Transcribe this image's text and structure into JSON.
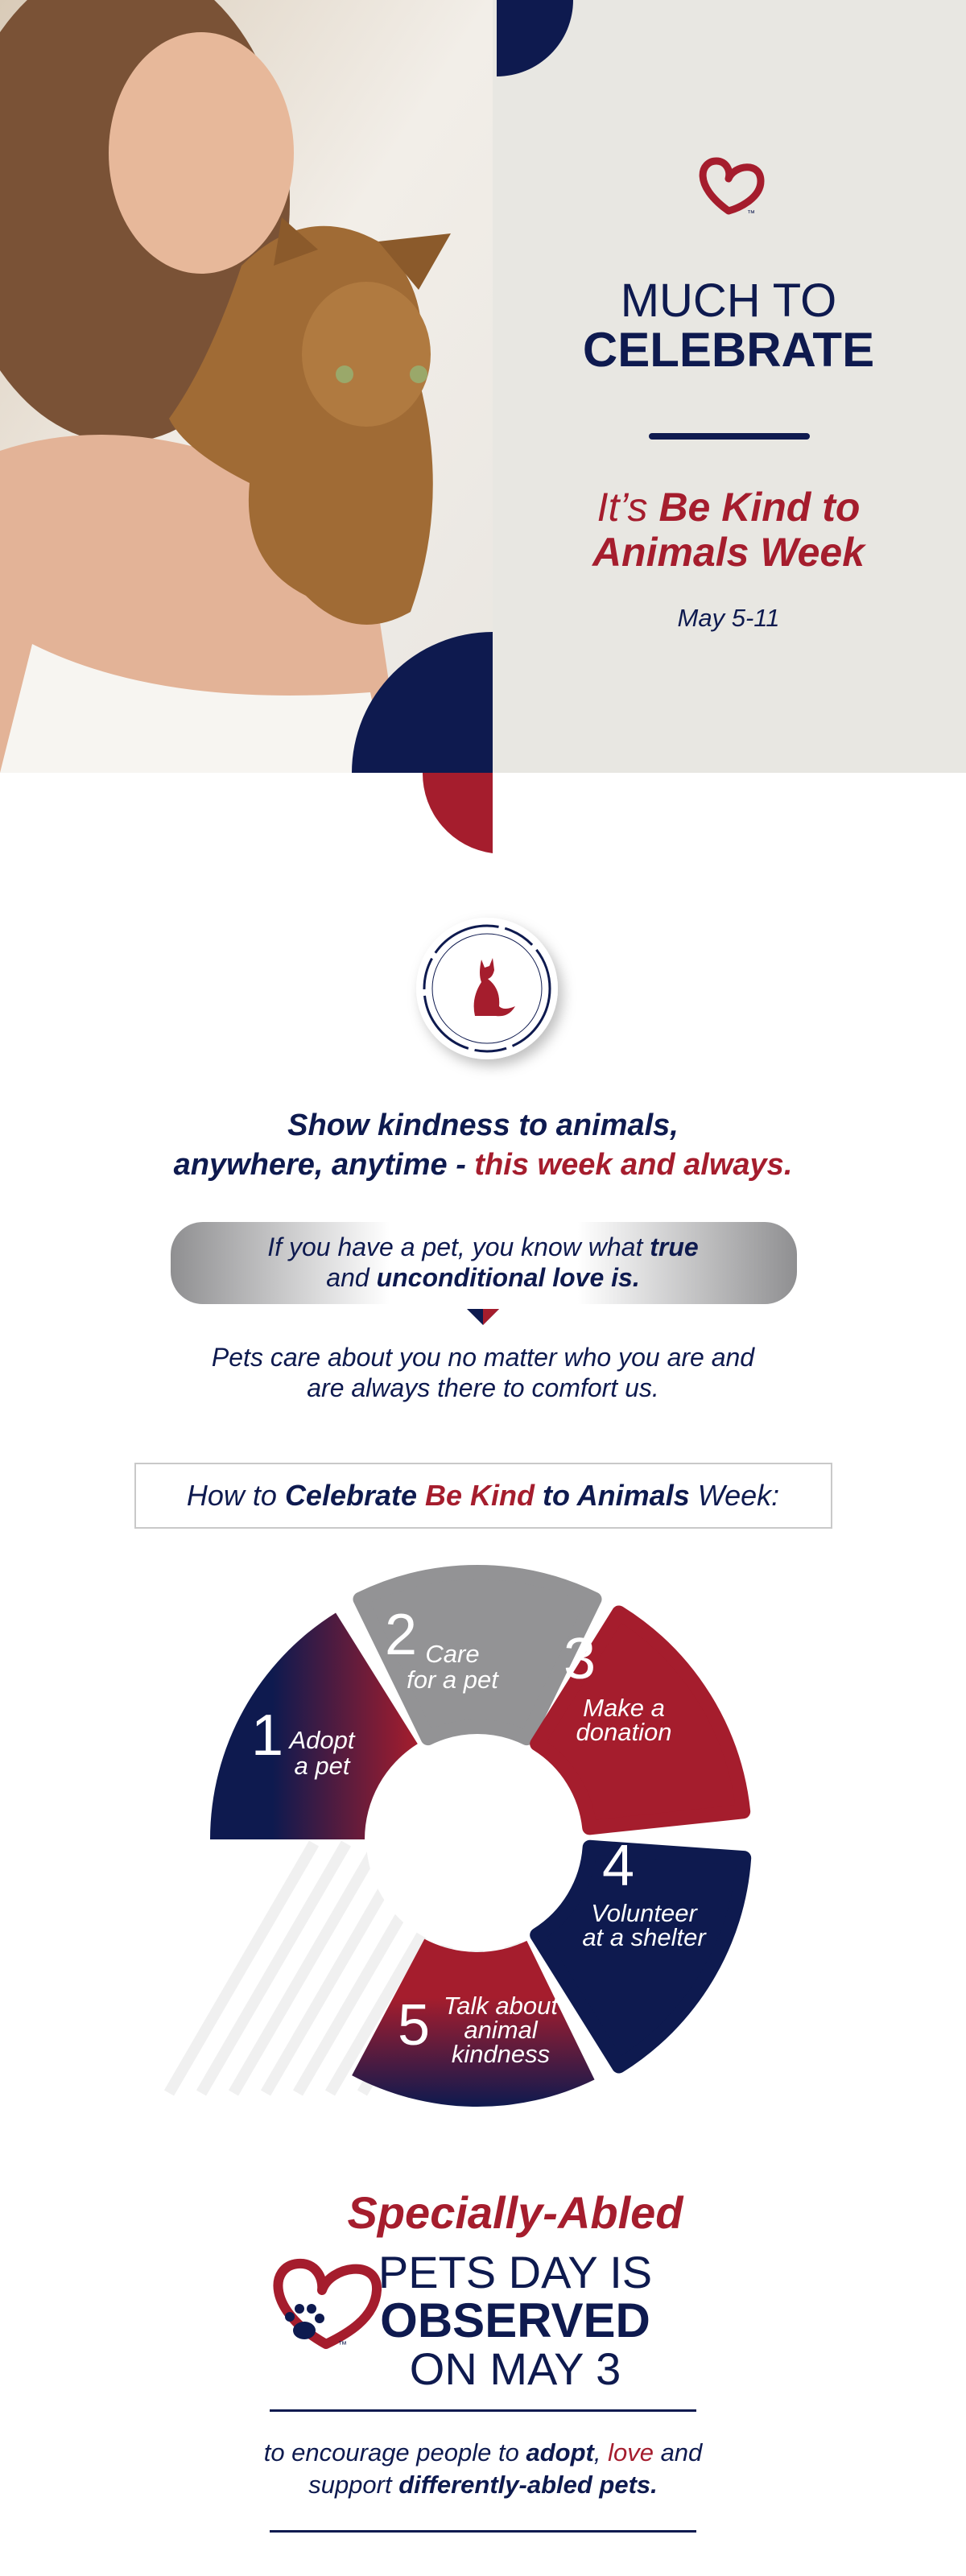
{
  "hero": {
    "logo_mark": "™",
    "title_line1": "MUCH TO",
    "title_line2": "CELEBRATE",
    "subtitle_line1": [
      "It’s ",
      "Be Kind to"
    ],
    "subtitle_line2": "Animals Week",
    "dates": "May 5-11"
  },
  "intro": {
    "headline_line1": "Show kindness to animals,",
    "headline_line2": [
      "anywhere, anytime - ",
      "this week and always."
    ],
    "callout_line1": [
      "If you have a pet, you know what ",
      "true"
    ],
    "callout_line2": [
      "and ",
      "unconditional love is."
    ],
    "body_line1": "Pets care about you no matter who you are and",
    "body_line2": "are always there to comfort us."
  },
  "how_to": {
    "heading": [
      "How to ",
      "Celebrate ",
      "Be Kind ",
      "to Animals ",
      "Week:"
    ]
  },
  "steps": [
    {
      "number": "1",
      "label": [
        "Adopt",
        "a pet"
      ]
    },
    {
      "number": "2",
      "label": [
        "Care",
        "for a pet"
      ]
    },
    {
      "number": "3",
      "label": [
        "Make a",
        "donation"
      ]
    },
    {
      "number": "4",
      "label": [
        "Volunteer",
        "at a shelter"
      ]
    },
    {
      "number": "5",
      "label": [
        "Talk about",
        "animal",
        "kindness"
      ]
    }
  ],
  "observance": {
    "heading": "Specially-Abled",
    "title_line1": "PETS DAY IS",
    "title_line2": "OBSERVED",
    "title_line3": "ON MAY 3",
    "body_line1": [
      "to encourage people to ",
      "adopt",
      ", ",
      "love",
      " and"
    ],
    "body_line2": [
      "support ",
      "differently-abled pets."
    ]
  }
}
